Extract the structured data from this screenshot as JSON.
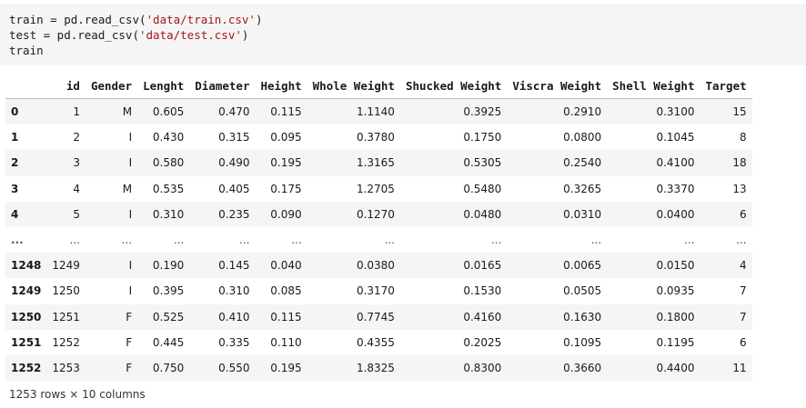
{
  "code": {
    "line1": {
      "pre": "train = pd.read_csv(",
      "str": "'data/train.csv'",
      "post": ")"
    },
    "line2": {
      "pre": "test = pd.read_csv(",
      "str": "'data/test.csv'",
      "post": ")"
    },
    "line3": "train"
  },
  "table": {
    "columns": [
      "",
      "id",
      "Gender",
      "Lenght",
      "Diameter",
      "Height",
      "Whole Weight",
      "Shucked Weight",
      "Viscra Weight",
      "Shell Weight",
      "Target"
    ],
    "rows": [
      [
        "0",
        "1",
        "M",
        "0.605",
        "0.470",
        "0.115",
        "1.1140",
        "0.3925",
        "0.2910",
        "0.3100",
        "15"
      ],
      [
        "1",
        "2",
        "I",
        "0.430",
        "0.315",
        "0.095",
        "0.3780",
        "0.1750",
        "0.0800",
        "0.1045",
        "8"
      ],
      [
        "2",
        "3",
        "I",
        "0.580",
        "0.490",
        "0.195",
        "1.3165",
        "0.5305",
        "0.2540",
        "0.4100",
        "18"
      ],
      [
        "3",
        "4",
        "M",
        "0.535",
        "0.405",
        "0.175",
        "1.2705",
        "0.5480",
        "0.3265",
        "0.3370",
        "13"
      ],
      [
        "4",
        "5",
        "I",
        "0.310",
        "0.235",
        "0.090",
        "0.1270",
        "0.0480",
        "0.0310",
        "0.0400",
        "6"
      ],
      [
        "...",
        "...",
        "...",
        "...",
        "...",
        "...",
        "...",
        "...",
        "...",
        "...",
        "..."
      ],
      [
        "1248",
        "1249",
        "I",
        "0.190",
        "0.145",
        "0.040",
        "0.0380",
        "0.0165",
        "0.0065",
        "0.0150",
        "4"
      ],
      [
        "1249",
        "1250",
        "I",
        "0.395",
        "0.310",
        "0.085",
        "0.3170",
        "0.1530",
        "0.0505",
        "0.0935",
        "7"
      ],
      [
        "1250",
        "1251",
        "F",
        "0.525",
        "0.410",
        "0.115",
        "0.7745",
        "0.4160",
        "0.1630",
        "0.1800",
        "7"
      ],
      [
        "1251",
        "1252",
        "F",
        "0.445",
        "0.335",
        "0.110",
        "0.4355",
        "0.2025",
        "0.1095",
        "0.1195",
        "6"
      ],
      [
        "1252",
        "1253",
        "F",
        "0.750",
        "0.550",
        "0.195",
        "1.8325",
        "0.8300",
        "0.3660",
        "0.4400",
        "11"
      ]
    ]
  },
  "shape_text": "1253 rows × 10 columns"
}
